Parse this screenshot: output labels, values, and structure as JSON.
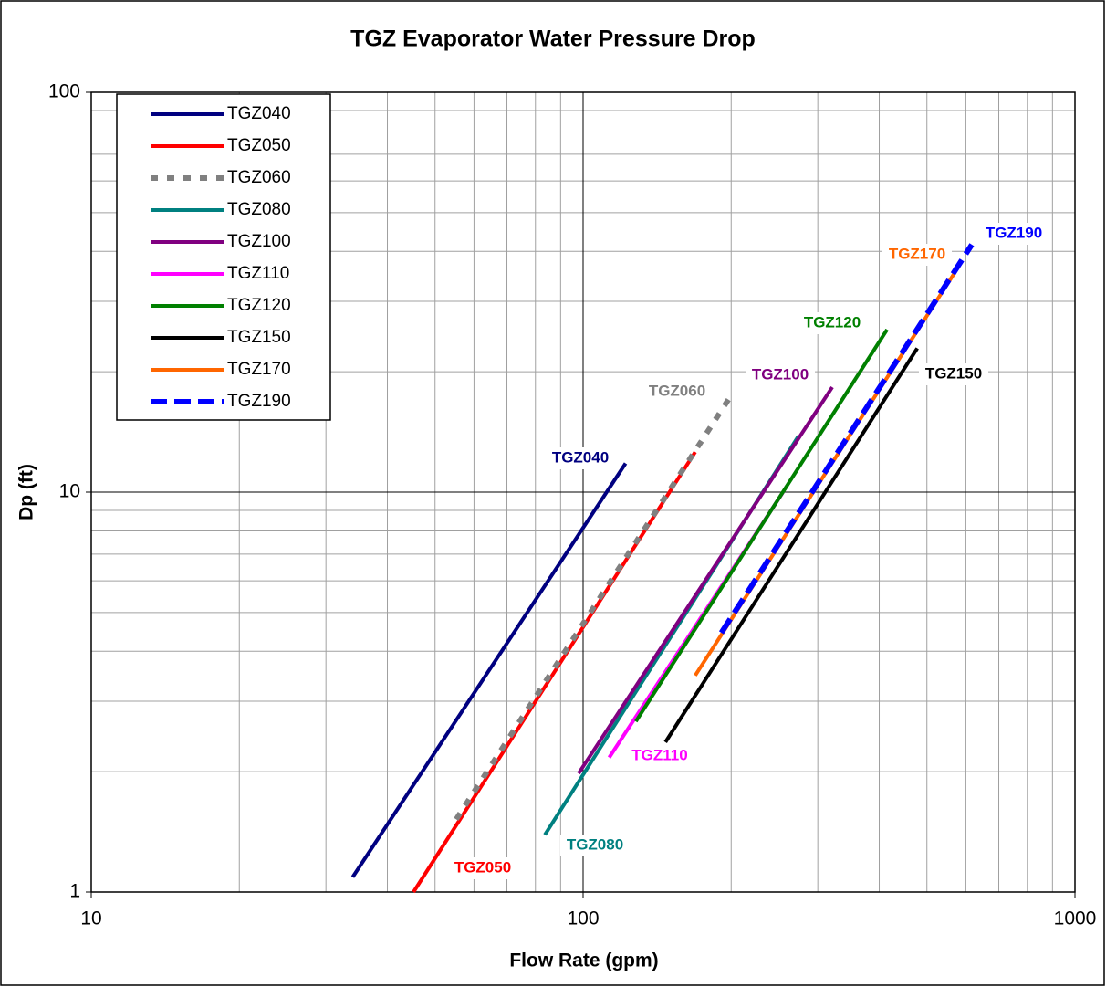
{
  "chart_data": {
    "type": "line",
    "title": "TGZ Evaporator Water Pressure Drop",
    "x_label": "Flow Rate (gpm)",
    "y_label": "Dp (ft)",
    "xscale": "log",
    "yscale": "log",
    "grid": true,
    "legend": "upper left",
    "xlim": [
      10,
      1000
    ],
    "ylim": [
      1,
      100
    ],
    "xticks": [
      10,
      100,
      1000
    ],
    "yticks": [
      1,
      10,
      100
    ],
    "xminor": [
      20,
      30,
      40,
      50,
      60,
      70,
      80,
      90,
      200,
      300,
      400,
      500,
      600,
      700,
      800,
      900
    ],
    "yminor": [
      2,
      3,
      4,
      5,
      6,
      7,
      8,
      9,
      20,
      30,
      40,
      50,
      60,
      70,
      80,
      90
    ],
    "series": [
      {
        "name": "TGZ040",
        "color": "#000080",
        "style": "solid",
        "x": [
          34,
          122
        ],
        "values": [
          1.09,
          11.8
        ]
      },
      {
        "name": "TGZ050",
        "color": "#ff0000",
        "style": "solid",
        "x": [
          45.2,
          169
        ],
        "values": [
          1,
          12.6
        ]
      },
      {
        "name": "TGZ060",
        "color": "#808080",
        "style": "dashed",
        "x": [
          55.2,
          199
        ],
        "values": [
          1.52,
          17.3
        ]
      },
      {
        "name": "TGZ080",
        "color": "#008080",
        "style": "solid",
        "x": [
          83.6,
          274
        ],
        "values": [
          1.39,
          13.8
        ]
      },
      {
        "name": "TGZ100",
        "color": "#800080",
        "style": "solid",
        "x": [
          97.9,
          321
        ],
        "values": [
          1.98,
          18.3
        ]
      },
      {
        "name": "TGZ110",
        "color": "#ff00ff",
        "style": "solid",
        "x": [
          113,
          255
        ],
        "values": [
          2.17,
          10
        ]
      },
      {
        "name": "TGZ120",
        "color": "#008000",
        "style": "solid",
        "x": [
          128,
          415
        ],
        "values": [
          2.67,
          25.5
        ]
      },
      {
        "name": "TGZ150",
        "color": "#000000",
        "style": "solid",
        "x": [
          147,
          478
        ],
        "values": [
          2.37,
          22.9
        ]
      },
      {
        "name": "TGZ170",
        "color": "#ff6600",
        "style": "solid",
        "x": [
          169,
          567
        ],
        "values": [
          3.48,
          35.1
        ]
      },
      {
        "name": "TGZ190",
        "color": "#0000ff",
        "style": "dashed",
        "x": [
          191,
          617
        ],
        "values": [
          4.45,
          41.6
        ]
      }
    ]
  }
}
